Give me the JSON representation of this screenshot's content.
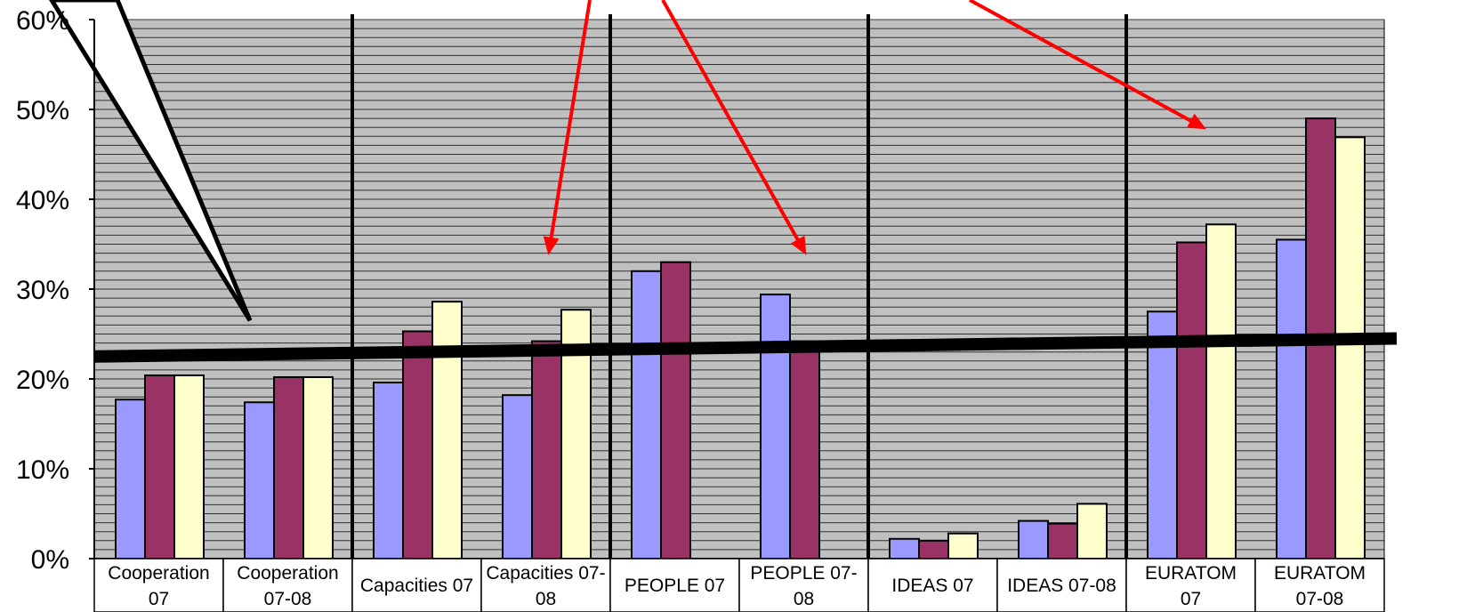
{
  "chart_data": {
    "type": "bar",
    "title": "",
    "xlabel": "",
    "ylabel": "",
    "ylim": [
      0,
      0.6
    ],
    "y_ticks": [
      "0%",
      "10%",
      "20%",
      "30%",
      "40%",
      "50%",
      "60%"
    ],
    "grid": "horizontal",
    "categories": [
      [
        "Cooperation",
        "07"
      ],
      [
        "Cooperation",
        "07-08"
      ],
      [
        "Capacities 07"
      ],
      [
        "Capacities 07-",
        "08"
      ],
      [
        "PEOPLE 07"
      ],
      [
        "PEOPLE 07-",
        "08"
      ],
      [
        "IDEAS 07"
      ],
      [
        "IDEAS 07-08"
      ],
      [
        "EURATOM",
        "07"
      ],
      [
        "EURATOM",
        "07-08"
      ]
    ],
    "series": [
      {
        "color": "#9999ff",
        "values": [
          0.177,
          0.174,
          0.196,
          0.182,
          0.32,
          0.294,
          0.022,
          0.042,
          0.275,
          0.355
        ]
      },
      {
        "color": "#993366",
        "values": [
          0.204,
          0.202,
          0.253,
          0.242,
          0.33,
          0.242,
          0.02,
          0.039,
          0.352,
          0.49
        ]
      },
      {
        "color": "#ffffcc",
        "values": [
          0.204,
          0.202,
          0.286,
          0.277,
          null,
          null,
          0.028,
          0.061,
          0.372,
          0.469
        ]
      }
    ],
    "group_separators_after": [
      2,
      4,
      6,
      8
    ],
    "trend_line": {
      "start": 0.225,
      "end": 0.245,
      "color": "#000000"
    },
    "annotation_arrows": [
      {
        "color": "#ff0000",
        "target_category": 3,
        "target_value": 0.33
      },
      {
        "color": "#ff0000",
        "target_category": 5,
        "target_value": 0.33
      },
      {
        "color": "#ff0000",
        "target_category": 8,
        "target_value": 0.47
      }
    ],
    "callout": {
      "color": "#ffffff",
      "outline": "#000000",
      "target_category": 1,
      "target_value": 0.27
    },
    "colors": {
      "plot_background": "#c0c0c0",
      "gridline": "#000000",
      "axis": "#000000"
    }
  }
}
